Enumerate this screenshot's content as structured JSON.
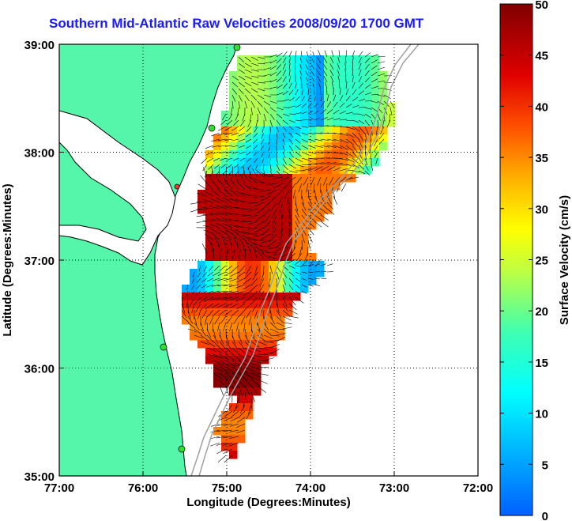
{
  "title": "Southern Mid-Atlantic Raw Velocities 2008/09/20 1700 GMT",
  "x_axis": {
    "label": "Longitude (Degrees:Minutes)",
    "ticks": [
      "77:00",
      "76:00",
      "75:00",
      "74:00",
      "73:00",
      "72:00"
    ]
  },
  "y_axis": {
    "label": "Latitude (Degrees:Minutes)",
    "ticks": [
      "39:00",
      "38:00",
      "37:00",
      "36:00",
      "35:00"
    ]
  },
  "colorbar": {
    "label": "Surface Velocity (cm/s)",
    "ticks": [
      "50",
      "45",
      "40",
      "35",
      "30",
      "25",
      "20",
      "15",
      "10",
      "5",
      "0"
    ],
    "min": 0,
    "max": 50
  },
  "colors": {
    "title": "#1a1aff",
    "land": "#55f5aa",
    "coastline": "#000000",
    "bathymetry": "#a0a0a0",
    "station": "#33dd33",
    "station_highlight": "#ff3333",
    "arrows": "#000000"
  },
  "map": {
    "lon_range": [
      -77,
      -72
    ],
    "lat_range": [
      35,
      39
    ],
    "grid": true
  }
}
